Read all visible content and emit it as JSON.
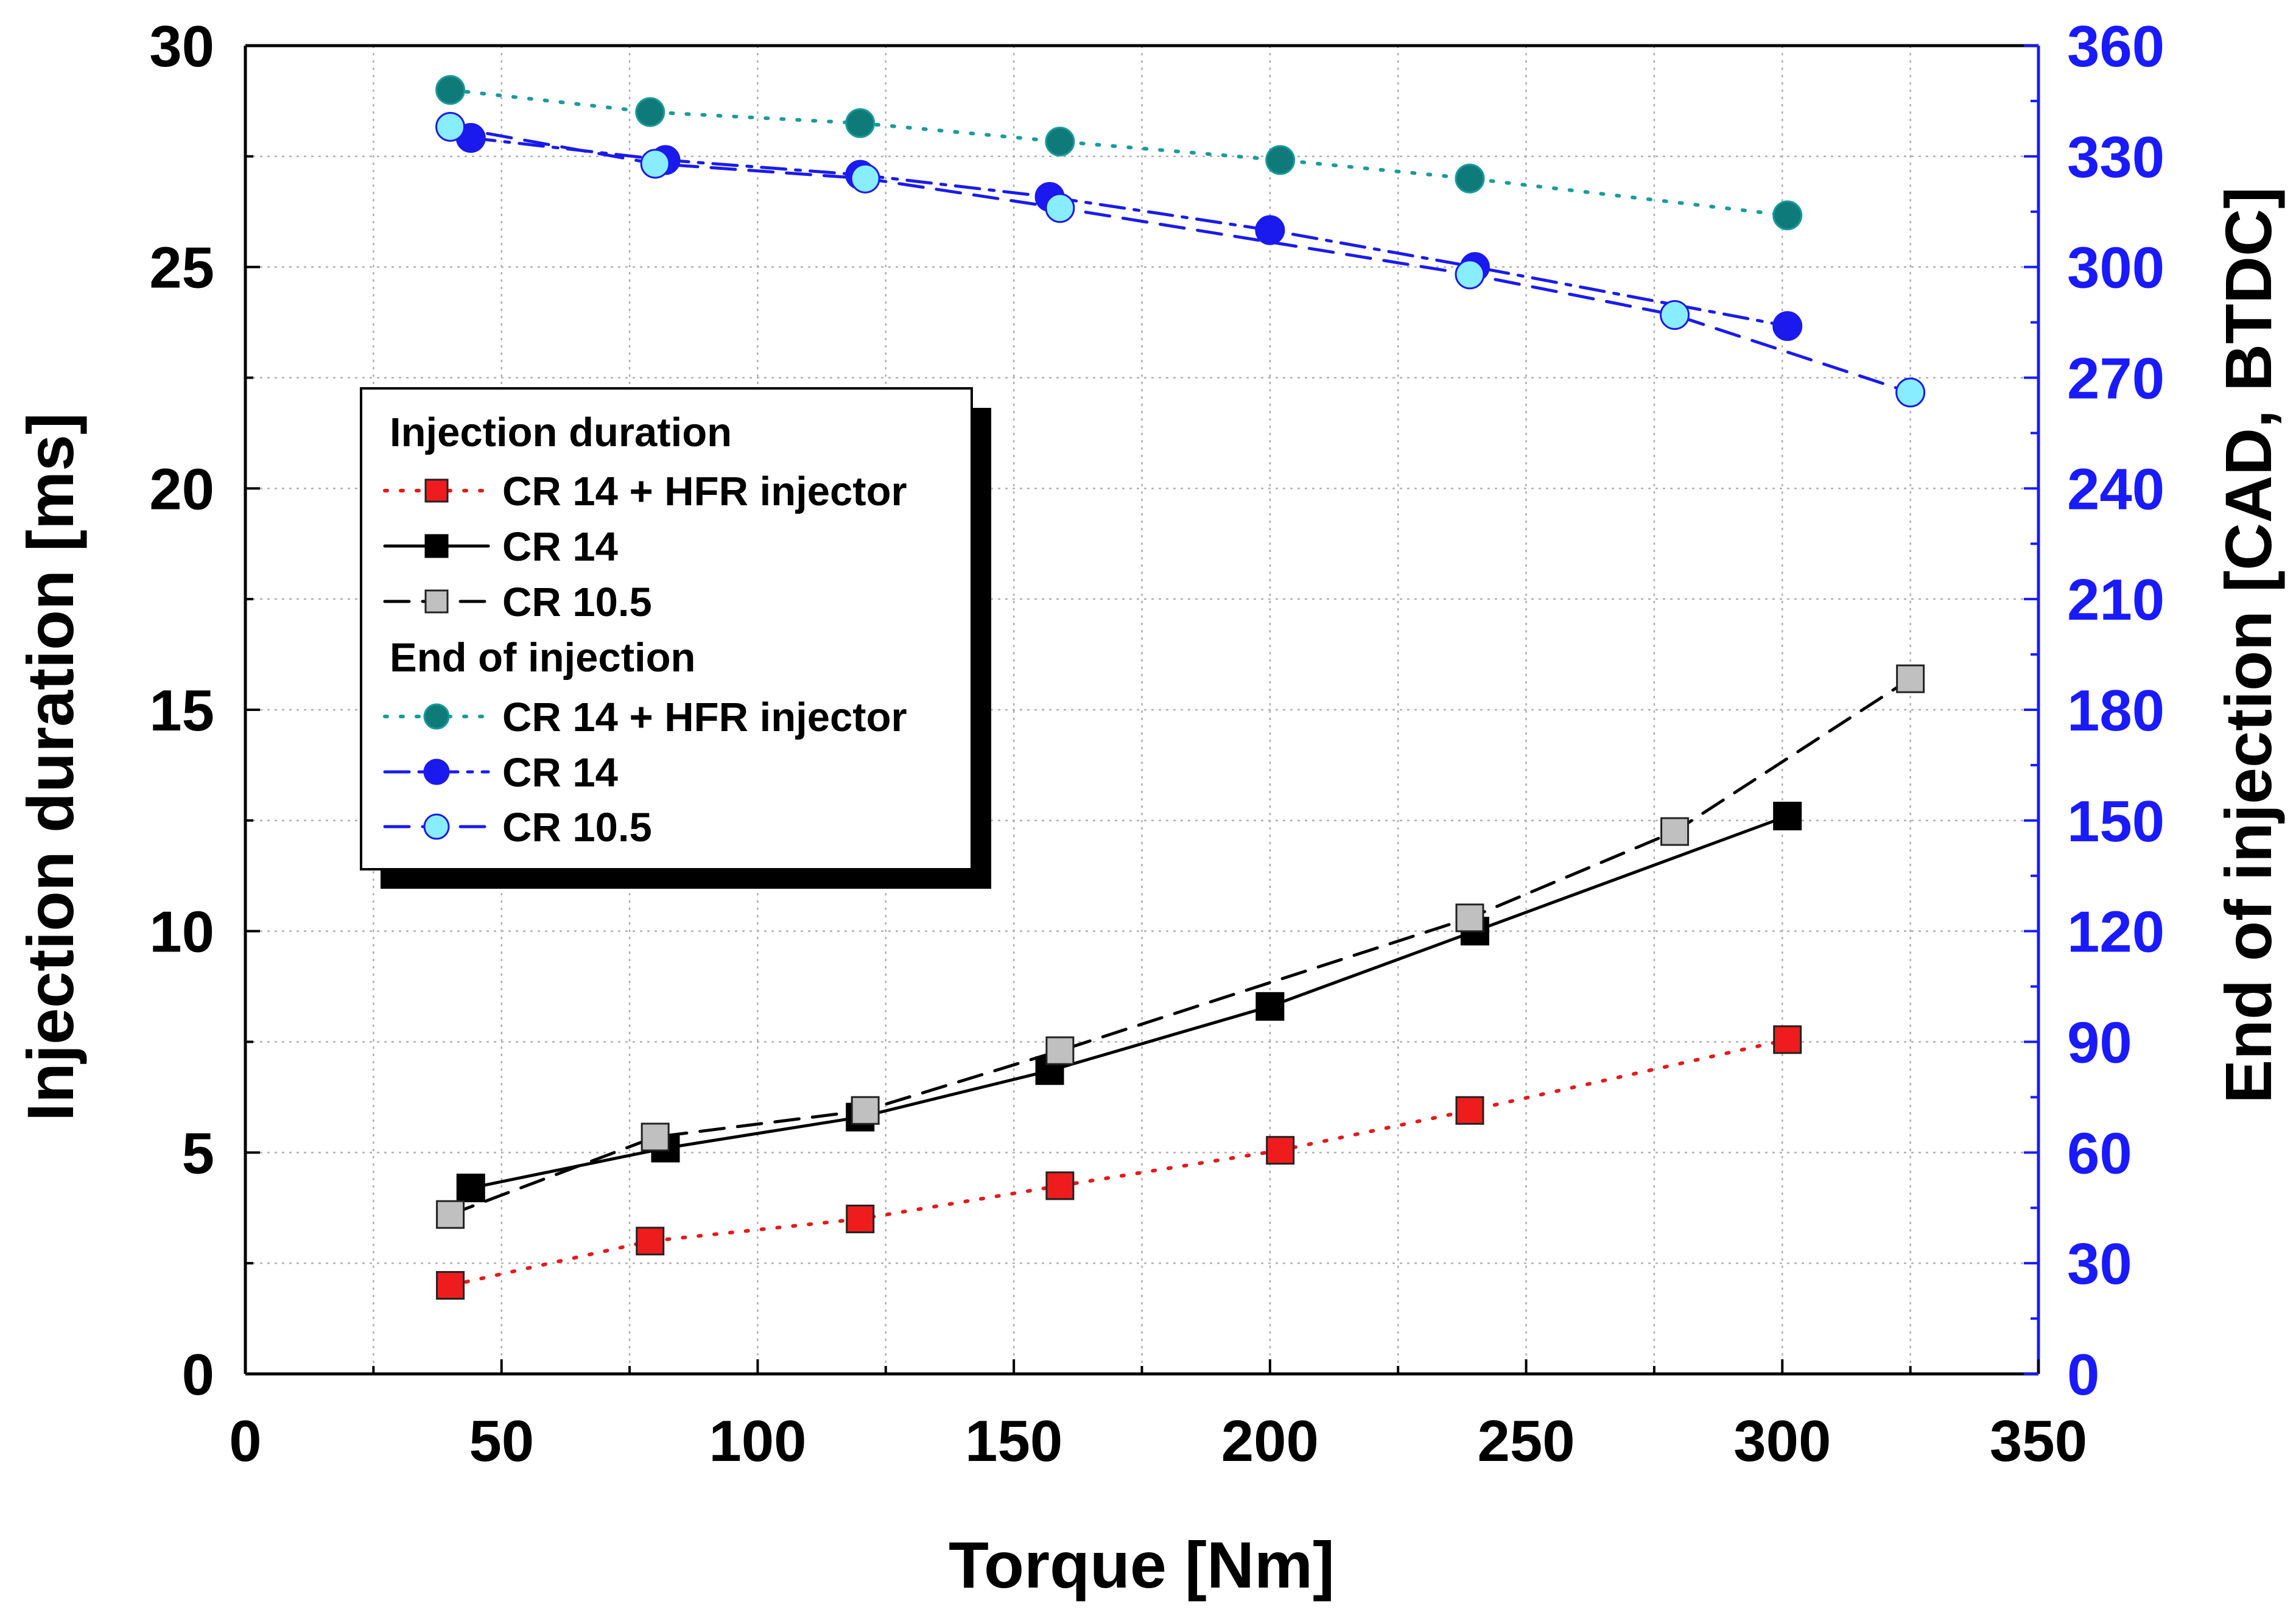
{
  "chart_data": {
    "type": "line",
    "xlabel": "Torque [Nm]",
    "ylabel_left": "Injection duration [ms]",
    "ylabel_right": "End of injection [CAD, BTDC]",
    "xlim": [
      0,
      350
    ],
    "ylim_left": [
      0,
      30
    ],
    "ylim_right": [
      0,
      360
    ],
    "x_ticks": [
      "0",
      "50",
      "100",
      "150",
      "200",
      "250",
      "300",
      "350"
    ],
    "y_left_ticks": [
      "0",
      "5",
      "10",
      "15",
      "20",
      "25",
      "30"
    ],
    "y_right_ticks": [
      "0",
      "30",
      "60",
      "90",
      "120",
      "150",
      "180",
      "210",
      "240",
      "270",
      "300",
      "330",
      "360"
    ],
    "grid": true,
    "right_axis_color": "#1a1aff",
    "legend": {
      "position": "left-middle",
      "group_titles": [
        "Injection duration",
        "End of injection"
      ]
    },
    "series": [
      {
        "name": "CR 14 + HFR injector",
        "group": "Injection duration",
        "axis": "left",
        "marker": "square",
        "line": "dotted",
        "fill": "#ee1c1c",
        "stroke": "#e31a1c",
        "x": [
          40,
          79,
          120,
          159,
          202,
          239,
          301
        ],
        "y": [
          2.0,
          3.0,
          3.5,
          4.25,
          5.05,
          5.95,
          7.55
        ]
      },
      {
        "name": "CR 14",
        "group": "Injection duration",
        "axis": "left",
        "marker": "square",
        "line": "solid",
        "fill": "#000000",
        "stroke": "#000000",
        "x": [
          44,
          82,
          120,
          157,
          200,
          240,
          301
        ],
        "y": [
          4.2,
          5.1,
          5.8,
          6.85,
          8.3,
          10.0,
          12.6
        ]
      },
      {
        "name": "CR 10.5",
        "group": "Injection duration",
        "axis": "left",
        "marker": "square",
        "line": "dashed",
        "fill": "#c0c0c0",
        "stroke": "#000000",
        "x": [
          40,
          80,
          121,
          159,
          239,
          279,
          325
        ],
        "y": [
          3.6,
          5.35,
          5.95,
          7.3,
          10.3,
          12.25,
          15.7
        ]
      },
      {
        "name": "CR 14 + HFR injector",
        "group": "End of injection",
        "axis": "right",
        "marker": "circle",
        "line": "dotted",
        "fill": "#0e7a7a",
        "stroke": "#1a9a9a",
        "x": [
          40,
          79,
          120,
          159,
          202,
          239,
          301
        ],
        "y": [
          348,
          342,
          339,
          334,
          329,
          324,
          314
        ]
      },
      {
        "name": "CR 14",
        "group": "End of injection",
        "axis": "right",
        "marker": "circle",
        "line": "dashdot",
        "fill": "#1a1aee",
        "stroke": "#1a1aee",
        "x": [
          44,
          82,
          120,
          157,
          200,
          240,
          301
        ],
        "y": [
          335,
          329,
          325,
          319,
          310,
          300,
          284
        ]
      },
      {
        "name": "CR 10.5",
        "group": "End of injection",
        "axis": "right",
        "marker": "circle",
        "line": "dashed",
        "fill": "#88eeff",
        "stroke": "#1a1aee",
        "x": [
          40,
          80,
          121,
          159,
          239,
          279,
          325
        ],
        "y": [
          338,
          328,
          324,
          316,
          298,
          287,
          266
        ]
      }
    ]
  }
}
